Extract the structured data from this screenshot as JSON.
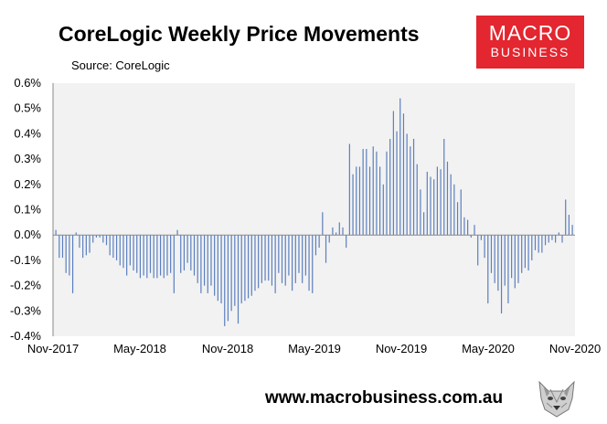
{
  "header": {
    "title": "CoreLogic Weekly Price Movements",
    "subtitle": "Source: CoreLogic"
  },
  "logo": {
    "line1": "MACRO",
    "line2": "BUSINESS",
    "color": "#e3262f"
  },
  "footer": {
    "url": "www.macrobusiness.com.au"
  },
  "chart_data": {
    "type": "bar",
    "title": "CoreLogic Weekly Price Movements",
    "subtitle": "Source: CoreLogic",
    "xlabel": "",
    "ylabel": "",
    "ylim": [
      -0.004,
      0.006
    ],
    "yticks": [
      "-0.4%",
      "-0.3%",
      "-0.2%",
      "-0.1%",
      "0.0%",
      "0.1%",
      "0.2%",
      "0.3%",
      "0.4%",
      "0.5%",
      "0.6%"
    ],
    "xticks": [
      "Nov-2017",
      "May-2018",
      "Nov-2018",
      "May-2019",
      "Nov-2019",
      "May-2020",
      "Nov-2020"
    ],
    "grid": false,
    "legend": "none",
    "bar_color": "#5b7fbf",
    "series": [
      {
        "values": [
          0.0002,
          -0.0009,
          -0.0009,
          -0.0015,
          -0.0016,
          -0.0023,
          0.0001,
          -0.0005,
          -0.0009,
          -0.0008,
          -0.0007,
          -0.0003,
          -0.0001,
          -0.0001,
          -0.0003,
          -0.0004,
          -0.0008,
          -0.0009,
          -0.001,
          -0.0012,
          -0.0013,
          -0.0016,
          -0.0012,
          -0.0014,
          -0.0015,
          -0.0017,
          -0.0016,
          -0.0017,
          -0.0015,
          -0.0017,
          -0.0017,
          -0.0016,
          -0.0017,
          -0.0016,
          -0.0015,
          -0.0023,
          0.0002,
          -0.0015,
          -0.0014,
          -0.0011,
          -0.0014,
          -0.0016,
          -0.0019,
          -0.0023,
          -0.002,
          -0.0023,
          -0.002,
          -0.0024,
          -0.0026,
          -0.0027,
          -0.0036,
          -0.0034,
          -0.003,
          -0.0028,
          -0.0035,
          -0.0027,
          -0.0026,
          -0.0025,
          -0.0024,
          -0.0022,
          -0.0021,
          -0.0019,
          -0.0018,
          -0.0018,
          -0.002,
          -0.0023,
          -0.0015,
          -0.0019,
          -0.002,
          -0.0016,
          -0.0022,
          -0.0019,
          -0.0015,
          -0.0019,
          -0.0016,
          -0.0022,
          -0.0023,
          -0.0008,
          -0.0005,
          0.0009,
          -0.0011,
          -0.0003,
          0.0003,
          0.0001,
          0.0005,
          0.0003,
          -0.0005,
          0.0036,
          0.0024,
          0.0027,
          0.0027,
          0.0034,
          0.0034,
          0.0027,
          0.0035,
          0.0033,
          0.0027,
          0.002,
          0.0033,
          0.0038,
          0.0049,
          0.0041,
          0.0054,
          0.0048,
          0.004,
          0.0035,
          0.0038,
          0.0028,
          0.0018,
          0.0009,
          0.0025,
          0.0023,
          0.0022,
          0.0027,
          0.0026,
          0.0038,
          0.0029,
          0.0024,
          0.002,
          0.0013,
          0.0018,
          0.0007,
          0.0006,
          -0.0001,
          0.0004,
          -0.0012,
          -0.0002,
          -0.0009,
          -0.0027,
          -0.0015,
          -0.0019,
          -0.0022,
          -0.0031,
          -0.002,
          -0.0027,
          -0.0017,
          -0.0021,
          -0.0019,
          -0.0015,
          -0.0013,
          -0.0014,
          -0.001,
          -0.0006,
          -0.0007,
          -0.0007,
          -0.0004,
          -0.0003,
          -0.0002,
          -0.0003,
          0.0001,
          -0.0003,
          0.0014,
          0.0008,
          0.0004
        ]
      }
    ]
  }
}
